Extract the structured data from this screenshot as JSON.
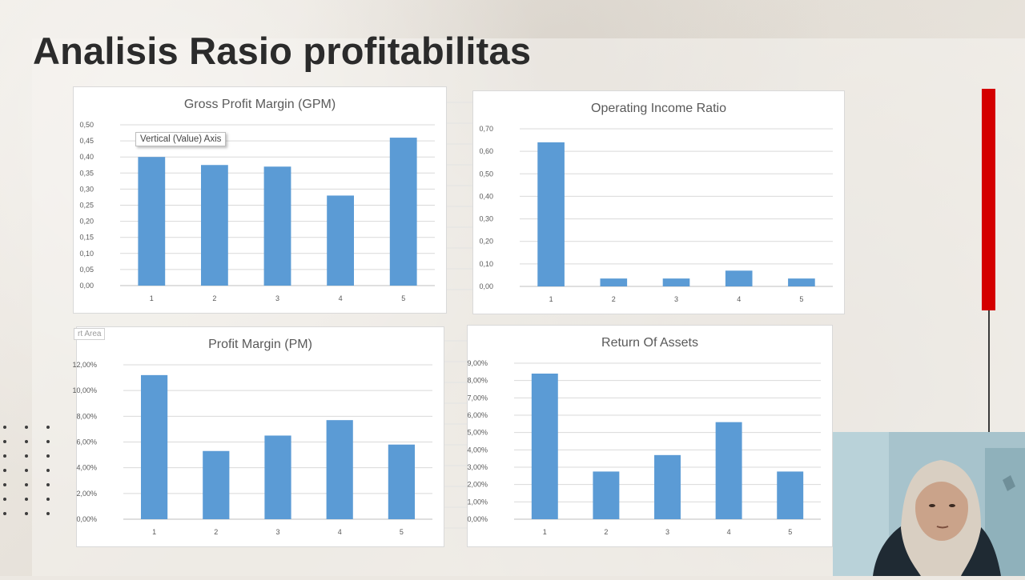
{
  "slide": {
    "title": "Analisis Rasio profitabilitas"
  },
  "tooltips": {
    "axis": "Vertical (Value) Axis",
    "area": "rt Area"
  },
  "colors": {
    "bar": "#5b9bd5",
    "accent_red": "#d40000",
    "grid": "#d9d9d9",
    "text": "#595959"
  },
  "chart_data": [
    {
      "type": "bar",
      "title": "Gross Profit Margin (GPM)",
      "categories": [
        "1",
        "2",
        "3",
        "4",
        "5"
      ],
      "values": [
        0.4,
        0.375,
        0.37,
        0.28,
        0.46
      ],
      "yticks": [
        "0,00",
        "0,05",
        "0,10",
        "0,15",
        "0,20",
        "0,25",
        "0,30",
        "0,35",
        "0,40",
        "0,45",
        "0,50"
      ],
      "ylim": [
        0,
        0.5
      ],
      "xlabel": "",
      "ylabel": "",
      "grid": true,
      "legend": "none"
    },
    {
      "type": "bar",
      "title": "Operating Income Ratio",
      "categories": [
        "1",
        "2",
        "3",
        "4",
        "5"
      ],
      "values": [
        0.64,
        0.035,
        0.035,
        0.07,
        0.035
      ],
      "yticks": [
        "0,00",
        "0,10",
        "0,20",
        "0,30",
        "0,40",
        "0,50",
        "0,60",
        "0,70"
      ],
      "ylim": [
        0,
        0.7
      ],
      "xlabel": "",
      "ylabel": "",
      "grid": true,
      "legend": "none"
    },
    {
      "type": "bar",
      "title": "Profit Margin (PM)",
      "categories": [
        "1",
        "2",
        "3",
        "4",
        "5"
      ],
      "values": [
        11.2,
        5.3,
        6.5,
        7.7,
        5.8
      ],
      "yticks": [
        "0,00%",
        "2,00%",
        "4,00%",
        "6,00%",
        "8,00%",
        "10,00%",
        "12,00%"
      ],
      "ylim": [
        0,
        12
      ],
      "xlabel": "",
      "ylabel": "",
      "grid": true,
      "legend": "none"
    },
    {
      "type": "bar",
      "title": "Return Of Assets",
      "categories": [
        "1",
        "2",
        "3",
        "4",
        "5"
      ],
      "values": [
        8.4,
        2.75,
        3.7,
        5.6,
        2.75
      ],
      "yticks": [
        "0,00%",
        "1,00%",
        "2,00%",
        "3,00%",
        "4,00%",
        "5,00%",
        "6,00%",
        "7,00%",
        "8,00%",
        "9,00%"
      ],
      "ylim": [
        0,
        9
      ],
      "xlabel": "",
      "ylabel": "",
      "grid": true,
      "legend": "none"
    }
  ]
}
